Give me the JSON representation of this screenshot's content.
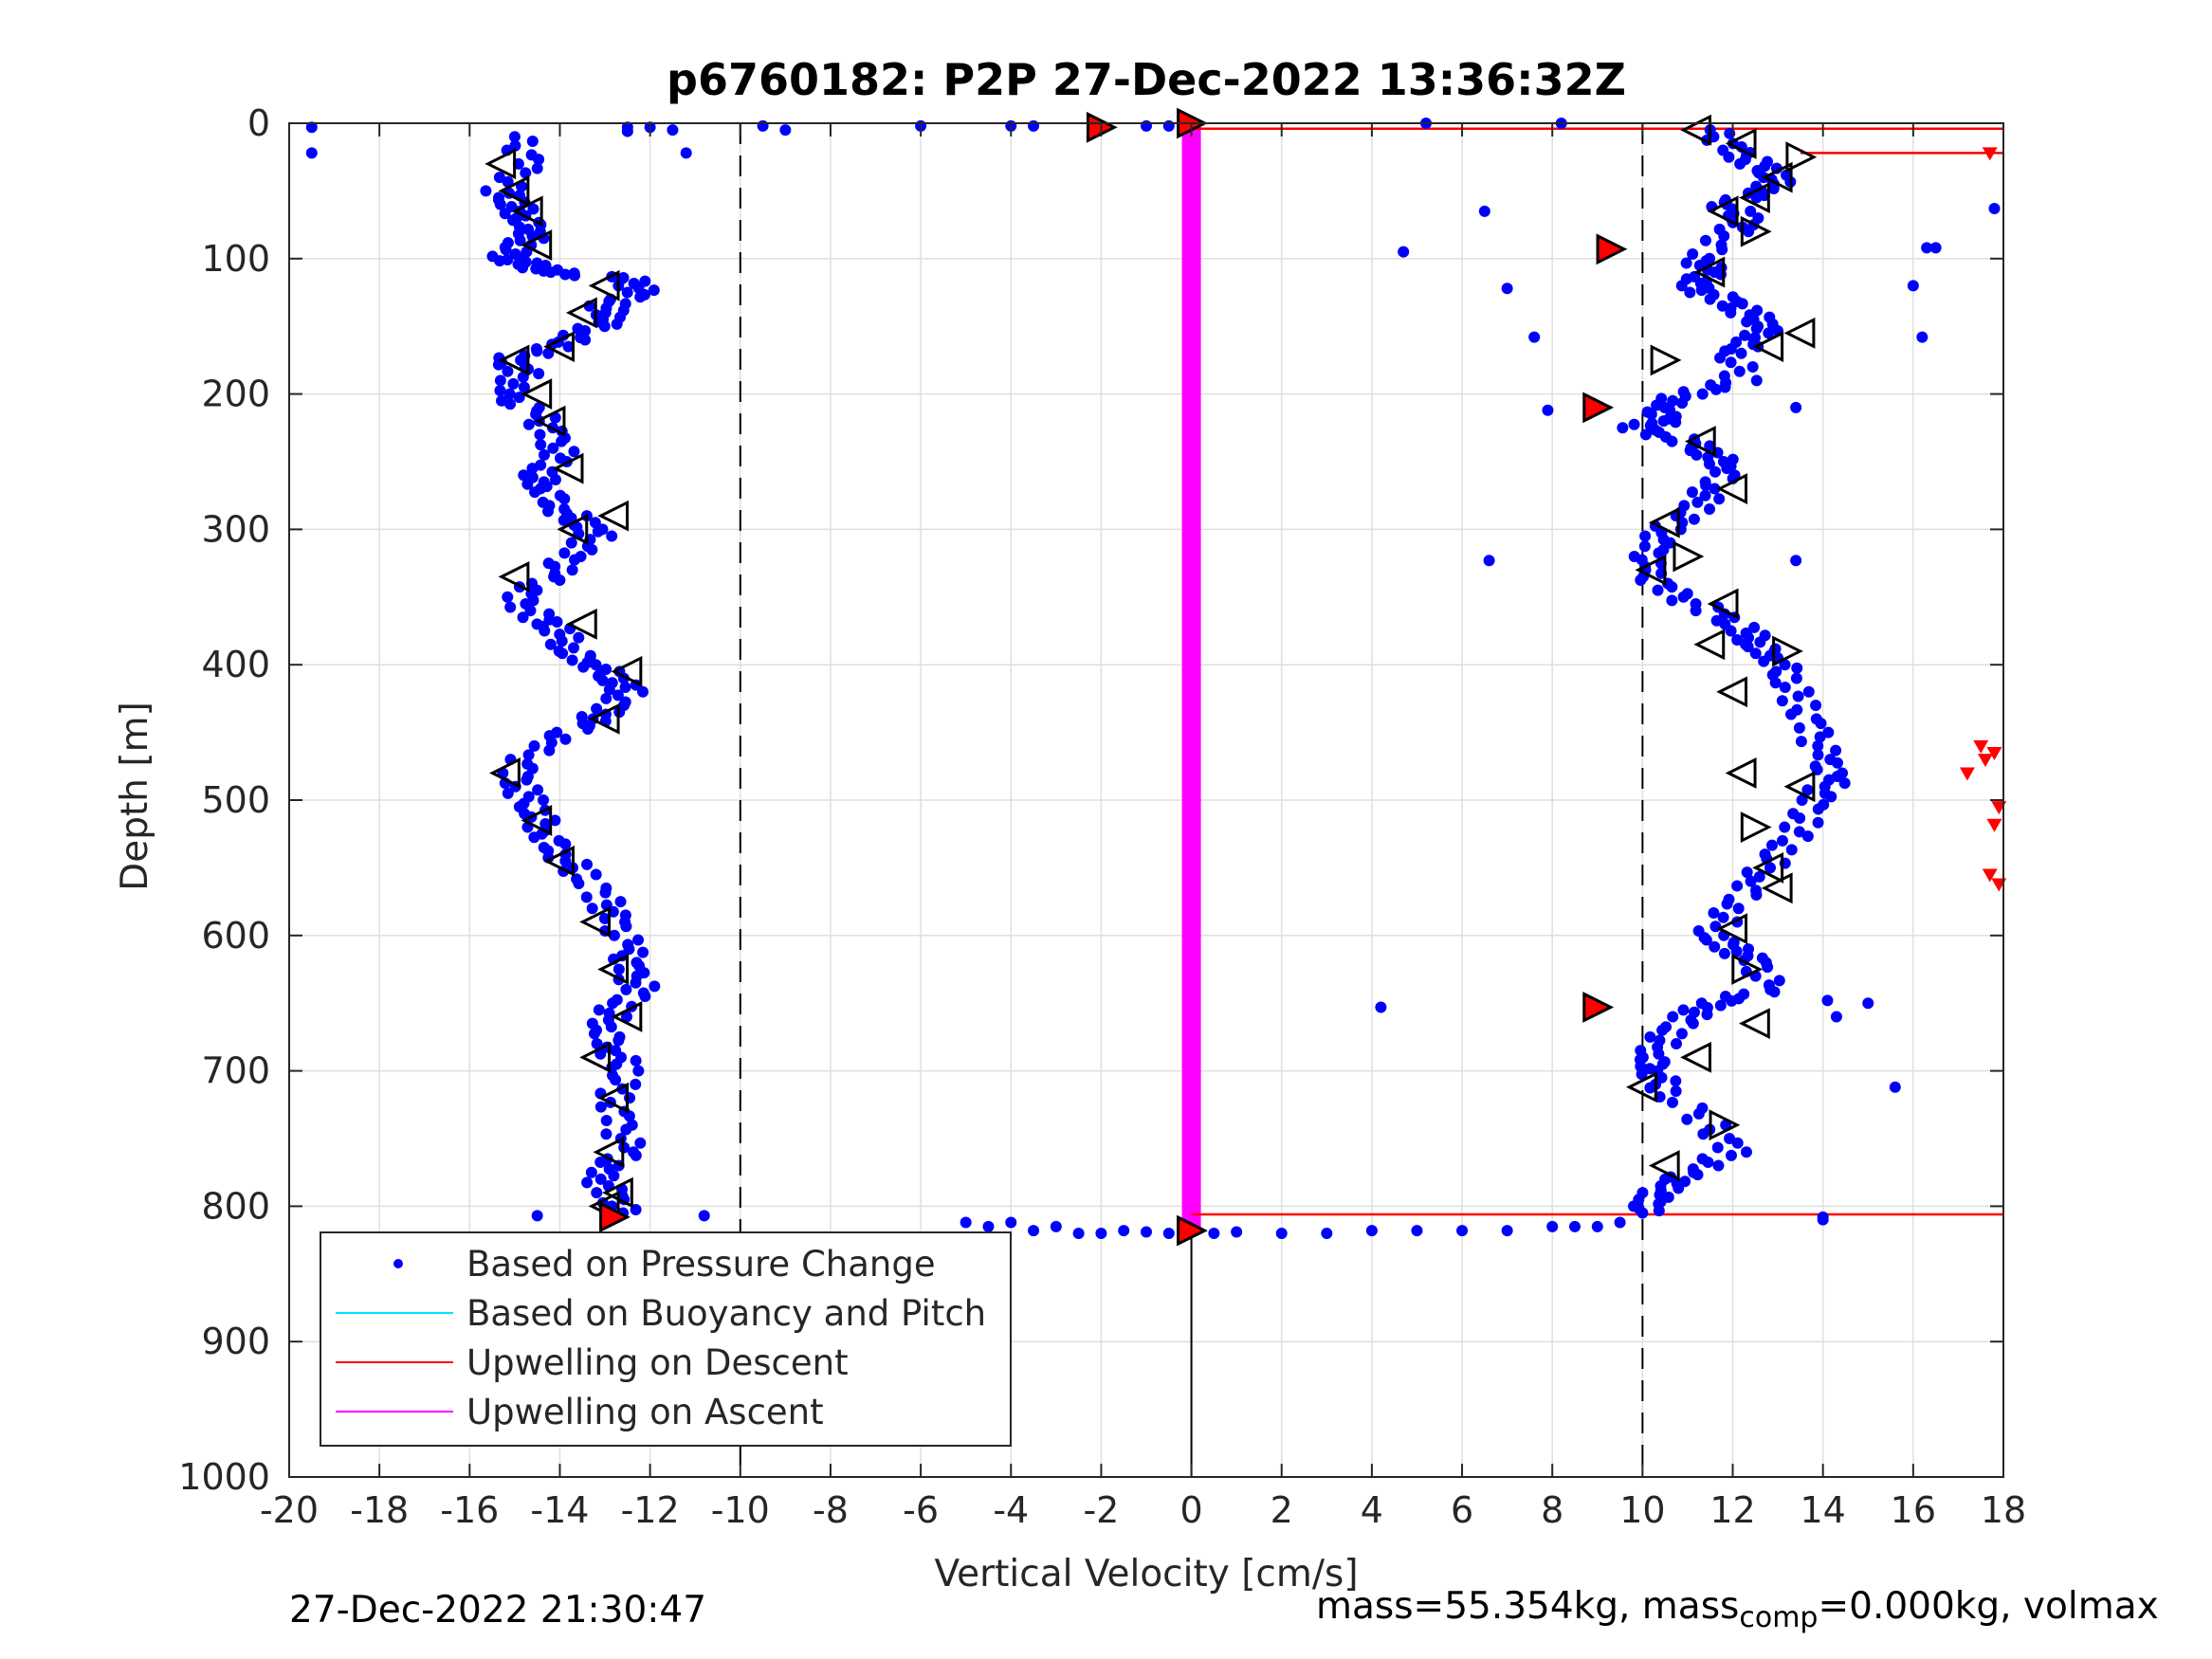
{
  "chart_data": {
    "type": "scatter",
    "title": "p6760182: P2P 27-Dec-2022 13:36:32Z",
    "xlabel": "Vertical Velocity [cm/s]",
    "ylabel": "Depth [m]",
    "xlim": [
      -20,
      18
    ],
    "ylim": [
      0,
      1000
    ],
    "y_reversed": true,
    "grid": true,
    "xticks": [
      -20,
      -18,
      -16,
      -14,
      -12,
      -10,
      -8,
      -6,
      -4,
      -2,
      0,
      2,
      4,
      6,
      8,
      10,
      12,
      14,
      16,
      18
    ],
    "yticks": [
      0,
      100,
      200,
      300,
      400,
      500,
      600,
      700,
      800,
      900,
      1000
    ],
    "reference_lines": [
      {
        "x": -10,
        "style": "dashed",
        "color": "#000000"
      },
      {
        "x": 10,
        "style": "dashed",
        "color": "#000000"
      },
      {
        "x": 0,
        "style": "solid",
        "color": "#000000"
      }
    ],
    "legend": {
      "position": "bottom-left",
      "entries": [
        {
          "label": "Based on Pressure Change",
          "color": "#0000ff",
          "marker": "dot"
        },
        {
          "label": "Based on Buoyancy and Pitch",
          "color": "#00e5ff",
          "marker": "line"
        },
        {
          "label": "Upwelling on Descent",
          "color": "#ff0000",
          "marker": "line"
        },
        {
          "label": "Upwelling on Ascent",
          "color": "#ff00ff",
          "marker": "line"
        }
      ]
    },
    "series": [
      {
        "name": "Based on Pressure Change",
        "color": "#0000ff",
        "descent_x": [
          -15.0,
          -14.7,
          -15.3,
          -15.0,
          -14.8,
          -14.5,
          -14.9,
          -15.2,
          -14.6,
          -14.3,
          -12.5,
          -12.2,
          -13.0,
          -12.8,
          -13.5,
          -14.0,
          -15.2,
          -14.8,
          -15.3,
          -14.5,
          -14.2,
          -14.0,
          -14.5,
          -14.3,
          -14.0,
          -13.5,
          -13.2,
          -13.8,
          -14.2,
          -15.0,
          -14.5,
          -14.0,
          -13.8,
          -13.2,
          -12.8,
          -12.5,
          -13.0,
          -13.5,
          -14.5,
          -15.0,
          -14.8,
          -14.5,
          -14.3,
          -14.0,
          -13.5,
          -13.0,
          -12.8,
          -12.5,
          -12.5,
          -12.2,
          -12.8,
          -13.0,
          -12.8,
          -12.5,
          -12.8,
          -12.7,
          -12.5,
          -13.2,
          -12.9,
          -12.6
        ],
        "descent_y": [
          10,
          30,
          50,
          60,
          70,
          80,
          90,
          100,
          105,
          110,
          115,
          125,
          135,
          145,
          155,
          165,
          175,
          185,
          200,
          215,
          230,
          245,
          260,
          270,
          285,
          295,
          305,
          320,
          335,
          350,
          365,
          375,
          390,
          400,
          410,
          420,
          435,
          445,
          460,
          480,
          495,
          510,
          525,
          540,
          555,
          575,
          590,
          610,
          625,
          640,
          655,
          670,
          685,
          700,
          720,
          740,
          760,
          775,
          790,
          805
        ],
        "ascent_x": [
          11.5,
          12.0,
          12.5,
          13.0,
          12.8,
          11.8,
          12.3,
          12.0,
          11.2,
          11.5,
          11.0,
          11.8,
          12.3,
          12.8,
          12.5,
          12.0,
          12.2,
          11.0,
          10.3,
          10.5,
          9.8,
          11.0,
          11.5,
          12.0,
          11.5,
          11.2,
          10.5,
          10.2,
          10.0,
          10.5,
          11.5,
          12.3,
          12.5,
          13.0,
          13.2,
          13.5,
          13.8,
          14.0,
          14.2,
          13.8,
          13.5,
          13.0,
          12.5,
          12.0,
          11.5,
          12.0,
          12.5,
          12.8,
          11.5,
          11.0,
          10.5,
          10.2,
          10.3,
          10.5,
          11.5,
          12.0,
          11.0,
          10.5,
          10.2,
          10.0
        ],
        "ascent_y": [
          5,
          20,
          30,
          40,
          50,
          60,
          70,
          80,
          100,
          110,
          120,
          130,
          140,
          150,
          160,
          170,
          190,
          200,
          210,
          220,
          225,
          235,
          245,
          255,
          270,
          285,
          300,
          315,
          330,
          345,
          360,
          375,
          385,
          395,
          410,
          430,
          450,
          470,
          485,
          500,
          520,
          540,
          560,
          580,
          600,
          610,
          620,
          640,
          650,
          660,
          675,
          690,
          700,
          715,
          740,
          760,
          775,
          785,
          795,
          805
        ],
        "surface_x": [
          -19.5,
          -12.5,
          -12.0,
          -11.5,
          -9.5,
          -9.0,
          -6.0,
          -4.0,
          -3.5,
          -2.0,
          -1.0,
          -0.5,
          5.2,
          8.2
        ],
        "surface_y": [
          3,
          3,
          3,
          5,
          2,
          5,
          2,
          2,
          2,
          3,
          2,
          2,
          0,
          0
        ],
        "bottom_x": [
          -5.0,
          -4.5,
          -4.0,
          -3.5,
          -3.0,
          -2.5,
          -2.0,
          -1.5,
          -1.0,
          -0.5,
          0.5,
          1.0,
          2.0,
          3.0,
          4.0,
          5.0,
          6.0,
          7.0,
          8.0,
          8.5,
          9.0,
          9.5
        ],
        "bottom_y": [
          812,
          815,
          812,
          818,
          815,
          820,
          820,
          818,
          819,
          820,
          820,
          819,
          820,
          820,
          818,
          818,
          818,
          818,
          815,
          815,
          815,
          812
        ],
        "outlier_x": [
          -19.5,
          -11.2,
          -12.5,
          -10.8,
          -14.5,
          4.7,
          4.2,
          6.5,
          6.6,
          7.0,
          7.6,
          7.9,
          13.4,
          14.0,
          14.1,
          14.3,
          14.0,
          13.4,
          15.0,
          15.6,
          16.0,
          16.2,
          16.5,
          17.8,
          16.3
        ],
        "outlier_y": [
          22,
          22,
          6,
          807,
          807,
          95,
          653,
          65,
          323,
          122,
          158,
          212,
          210,
          808,
          648,
          660,
          810,
          323,
          650,
          712,
          120,
          158,
          92,
          63,
          92
        ]
      },
      {
        "name": "Upwelling on Descent",
        "color": "#ff0000",
        "segments": [
          {
            "depth": 4,
            "x_from": 0,
            "x_to": 18
          },
          {
            "depth": 22,
            "x_from": 13.5,
            "x_to": 18
          },
          {
            "depth": 806,
            "x_from": 0,
            "x_to": 18
          }
        ],
        "edge_points_x": [
          17.7,
          17.5,
          17.8,
          17.2,
          17.6,
          17.9,
          17.8,
          17.7,
          17.9
        ],
        "edge_points_y": [
          22,
          460,
          465,
          480,
          470,
          505,
          518,
          555,
          562
        ]
      },
      {
        "name": "Upwelling on Ascent",
        "color": "#ff00ff",
        "x": 0,
        "depth_from": 2,
        "depth_to": 818
      }
    ],
    "markers": {
      "descent_triangles_x": [
        -15.3,
        -15.0,
        -14.7,
        -14.5,
        -13.0,
        -13.5,
        -14.0,
        -15.0,
        -14.5,
        -14.2,
        -13.8,
        -12.8,
        -13.7,
        -15.0,
        -13.5,
        -12.5,
        -13.0,
        -15.2,
        -14.5,
        -14.0,
        -13.2,
        -12.8,
        -12.5,
        -13.2,
        -12.8,
        -12.9,
        -12.7,
        -13.0
      ],
      "descent_triangles_y": [
        30,
        50,
        65,
        90,
        120,
        140,
        165,
        175,
        200,
        220,
        255,
        290,
        300,
        335,
        370,
        405,
        440,
        480,
        515,
        545,
        590,
        625,
        660,
        690,
        720,
        760,
        790,
        800
      ],
      "ascent_triangles_x": [
        11.2,
        12.2,
        13.5,
        13.0,
        12.5,
        11.8,
        12.5,
        11.5,
        13.5,
        12.8,
        10.5,
        11.3,
        12.0,
        10.5,
        11.0,
        10.2,
        11.8,
        11.5,
        13.2,
        12.0,
        12.2,
        13.5,
        12.5,
        12.8,
        13.0,
        12.0,
        12.3,
        12.5,
        11.2,
        10.0,
        11.8,
        10.5
      ],
      "ascent_triangles_y": [
        5,
        15,
        25,
        40,
        55,
        65,
        80,
        110,
        155,
        165,
        175,
        235,
        270,
        295,
        320,
        330,
        355,
        385,
        390,
        420,
        480,
        490,
        520,
        550,
        565,
        595,
        625,
        665,
        690,
        712,
        740,
        770
      ],
      "red_triangles_x": [
        -2.0,
        0.0,
        9.3,
        9.0,
        9.0,
        -12.8,
        0.0
      ],
      "red_triangles_y": [
        3,
        0,
        93,
        210,
        653,
        808,
        818
      ]
    }
  },
  "footer": {
    "timestamp": "27-Dec-2022 21:30:47",
    "mass_prefix": "mass=55.354kg, mass",
    "mass_sub": "comp",
    "mass_suffix": "=0.000kg, volmax"
  }
}
